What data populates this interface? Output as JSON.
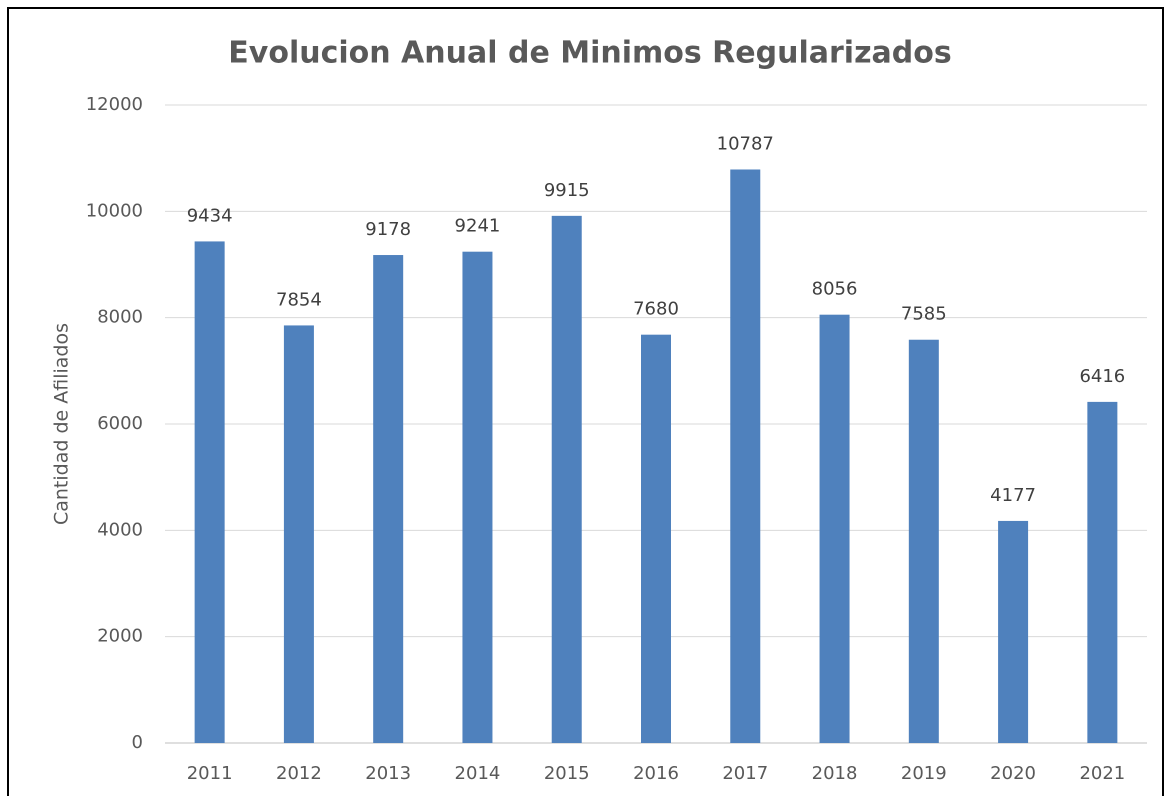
{
  "chart_data": {
    "type": "bar",
    "title": "Evolucion Anual de Minimos Regularizados",
    "ylabel": "Cantidad de Afiliados",
    "categories": [
      "2011",
      "2012",
      "2013",
      "2014",
      "2015",
      "2016",
      "2017",
      "2018",
      "2019",
      "2020",
      "2021"
    ],
    "values": [
      9434,
      7854,
      9178,
      9241,
      9915,
      7680,
      10787,
      8056,
      7585,
      4177,
      6416
    ],
    "color": "#4f81bd",
    "ylim": [
      0,
      12000
    ],
    "yticks": [
      0,
      2000,
      4000,
      6000,
      8000,
      10000,
      12000
    ],
    "grid": true
  }
}
